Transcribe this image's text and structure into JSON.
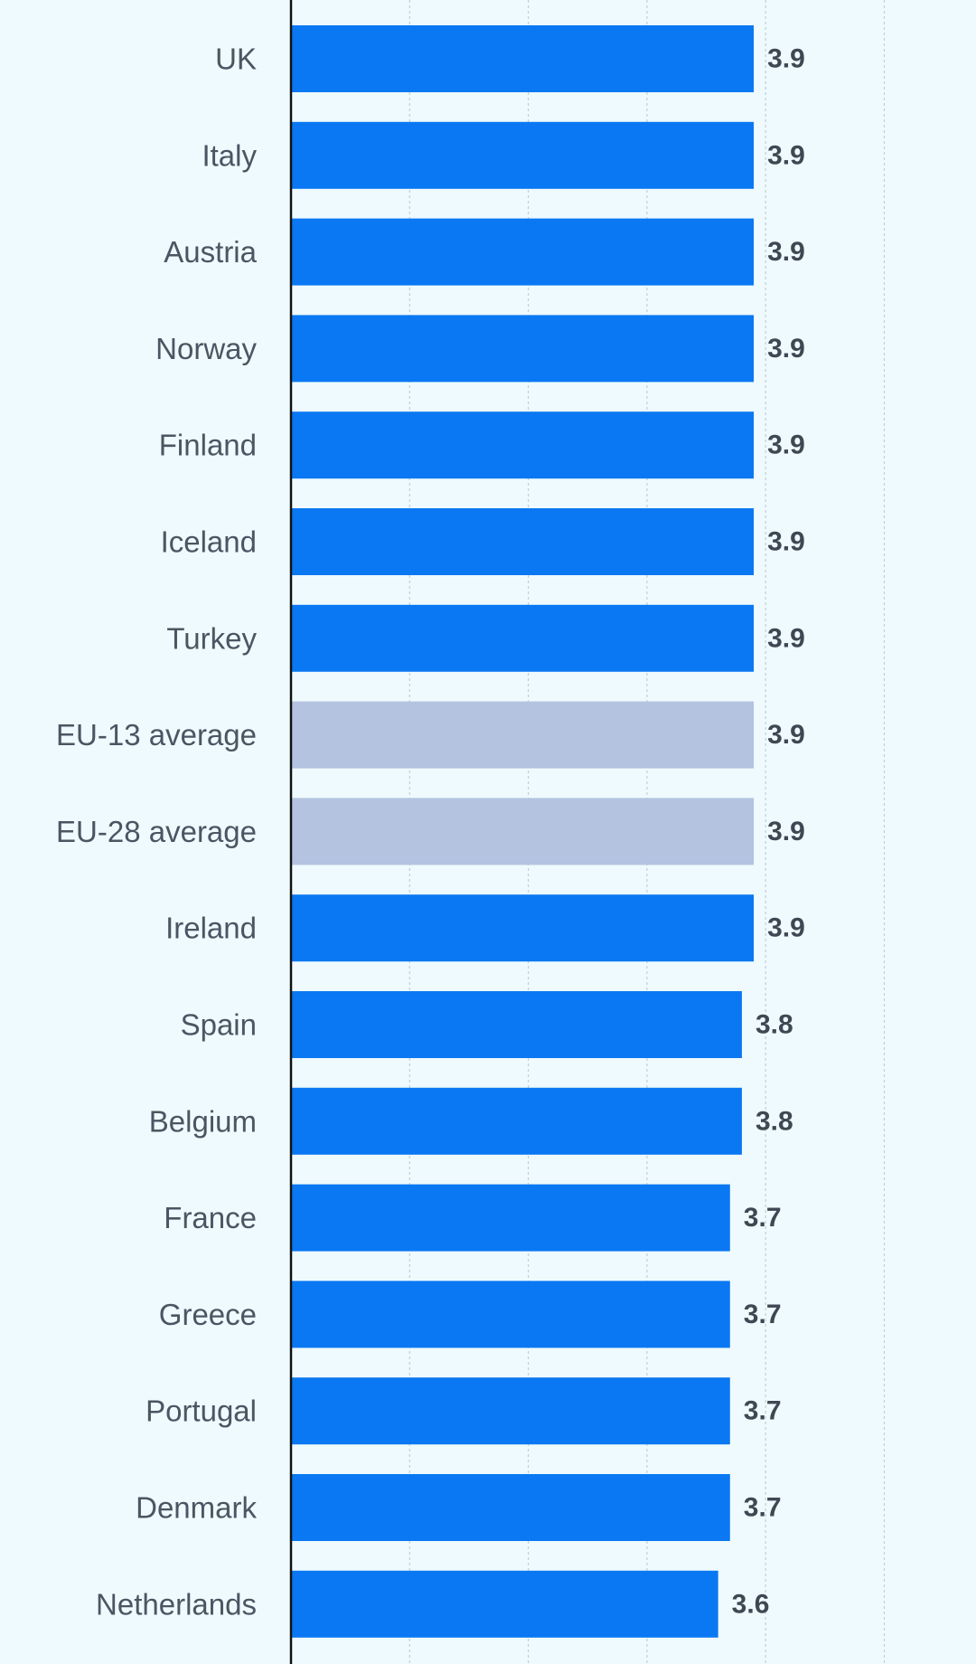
{
  "chart_data": {
    "type": "bar",
    "orientation": "horizontal",
    "categories": [
      "UK",
      "Italy",
      "Austria",
      "Norway",
      "Finland",
      "Iceland",
      "Turkey",
      "EU-13 average",
      "EU-28 average",
      "Ireland",
      "Spain",
      "Belgium",
      "France",
      "Greece",
      "Portugal",
      "Denmark",
      "Netherlands"
    ],
    "values": [
      3.9,
      3.9,
      3.9,
      3.9,
      3.9,
      3.9,
      3.9,
      3.9,
      3.9,
      3.9,
      3.8,
      3.8,
      3.7,
      3.7,
      3.7,
      3.7,
      3.6
    ],
    "value_labels": [
      "3.9",
      "3.9",
      "3.9",
      "3.9",
      "3.9",
      "3.9",
      "3.9",
      "3.9",
      "3.9",
      "3.9",
      "3.8",
      "3.8",
      "3.7",
      "3.7",
      "3.7",
      "3.7",
      "3.6"
    ],
    "highlight": [
      false,
      false,
      false,
      false,
      false,
      false,
      false,
      true,
      true,
      false,
      false,
      false,
      false,
      false,
      false,
      false,
      false
    ],
    "xlim": [
      0,
      5
    ],
    "grid": true,
    "grid_values": [
      1,
      2,
      3,
      4,
      5
    ],
    "title": "",
    "xlabel": "",
    "ylabel": "",
    "colors": {
      "bar": "#0a78f2",
      "bar_highlight": "#b3c3e0",
      "background": "#eefafd",
      "grid": "#c3ced8",
      "axis": "#111111",
      "category_text": "#4b5563",
      "value_text": "#3f4753"
    }
  }
}
